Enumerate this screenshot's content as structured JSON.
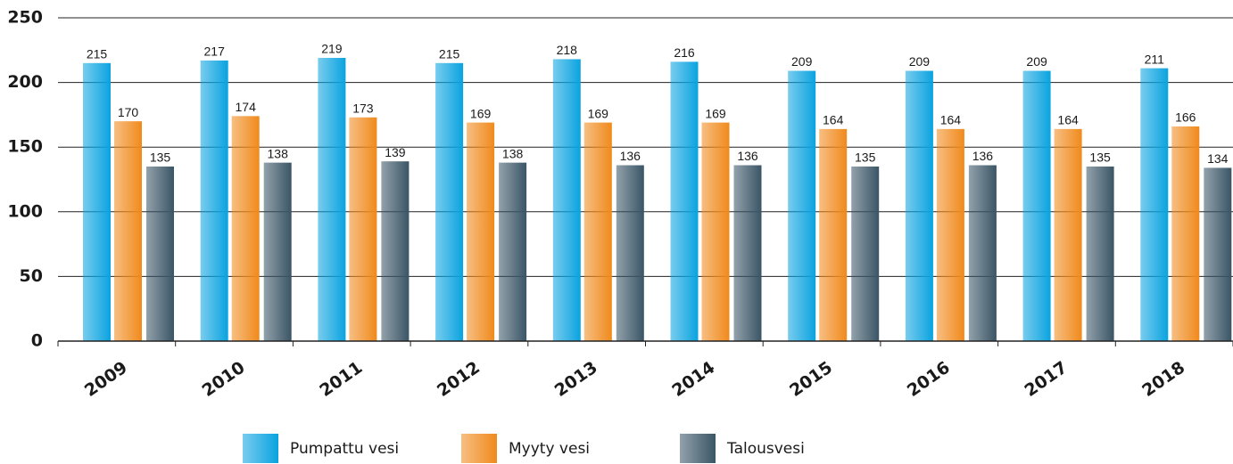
{
  "chart_data": {
    "type": "bar",
    "categories": [
      "2009",
      "2010",
      "2011",
      "2012",
      "2013",
      "2014",
      "2015",
      "2016",
      "2017",
      "2018"
    ],
    "series": [
      {
        "name": "Pumpattu vesi",
        "color": "#0aa3e0",
        "values": [
          215,
          217,
          219,
          215,
          218,
          216,
          209,
          209,
          209,
          211
        ]
      },
      {
        "name": "Myyty vesi",
        "color": "#f08a1c",
        "values": [
          170,
          174,
          173,
          169,
          169,
          169,
          164,
          164,
          164,
          166
        ]
      },
      {
        "name": "Talousvesi",
        "color": "#3a5566",
        "values": [
          135,
          138,
          139,
          138,
          136,
          136,
          135,
          136,
          135,
          134
        ]
      }
    ],
    "ylim": [
      0,
      250
    ],
    "yticks": [
      0,
      50,
      100,
      150,
      200,
      250
    ],
    "grid": true
  }
}
